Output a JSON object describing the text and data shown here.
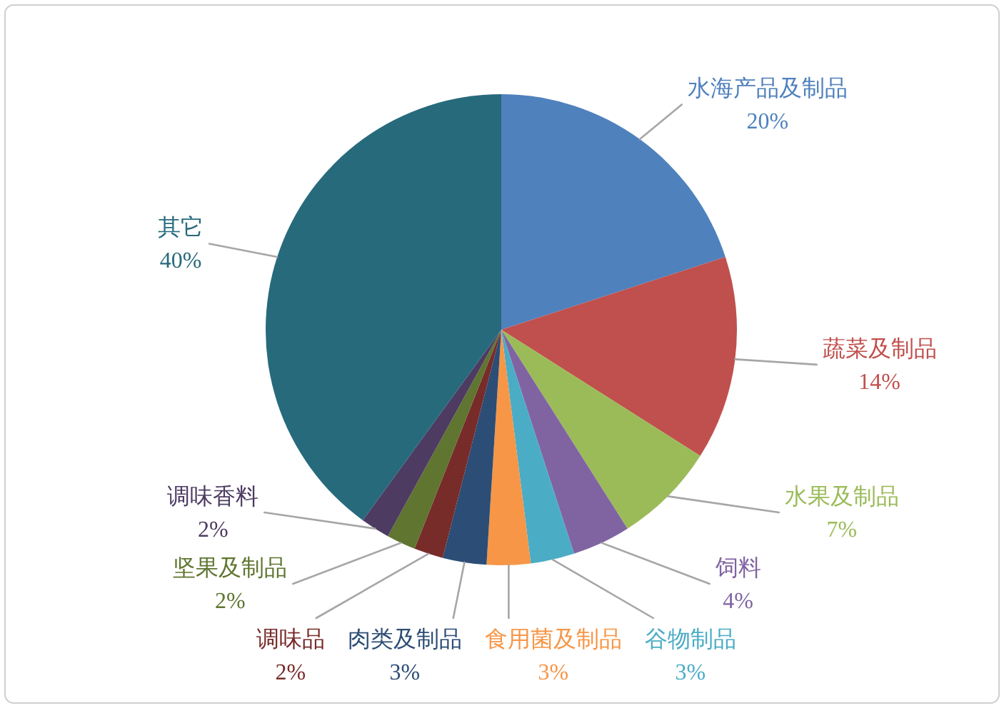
{
  "chart_data": {
    "type": "pie",
    "categories": [
      "水海产品及制品",
      "蔬菜及制品",
      "水果及制品",
      "饲料",
      "谷物制品",
      "食用菌及制品",
      "肉类及制品",
      "调味品",
      "坚果及制品",
      "调味香料",
      "其它"
    ],
    "values": [
      20,
      14,
      7,
      4,
      3,
      3,
      3,
      2,
      2,
      2,
      40
    ],
    "value_labels": [
      "20%",
      "14%",
      "7%",
      "4%",
      "3%",
      "3%",
      "3%",
      "2%",
      "2%",
      "2%",
      "40%"
    ],
    "colors": [
      "#4f81bd",
      "#c0504d",
      "#9bbb59",
      "#8064a2",
      "#4bacc6",
      "#f79646",
      "#2c4d75",
      "#772c2a",
      "#5f7530",
      "#4d3b62",
      "#276a7c"
    ]
  }
}
